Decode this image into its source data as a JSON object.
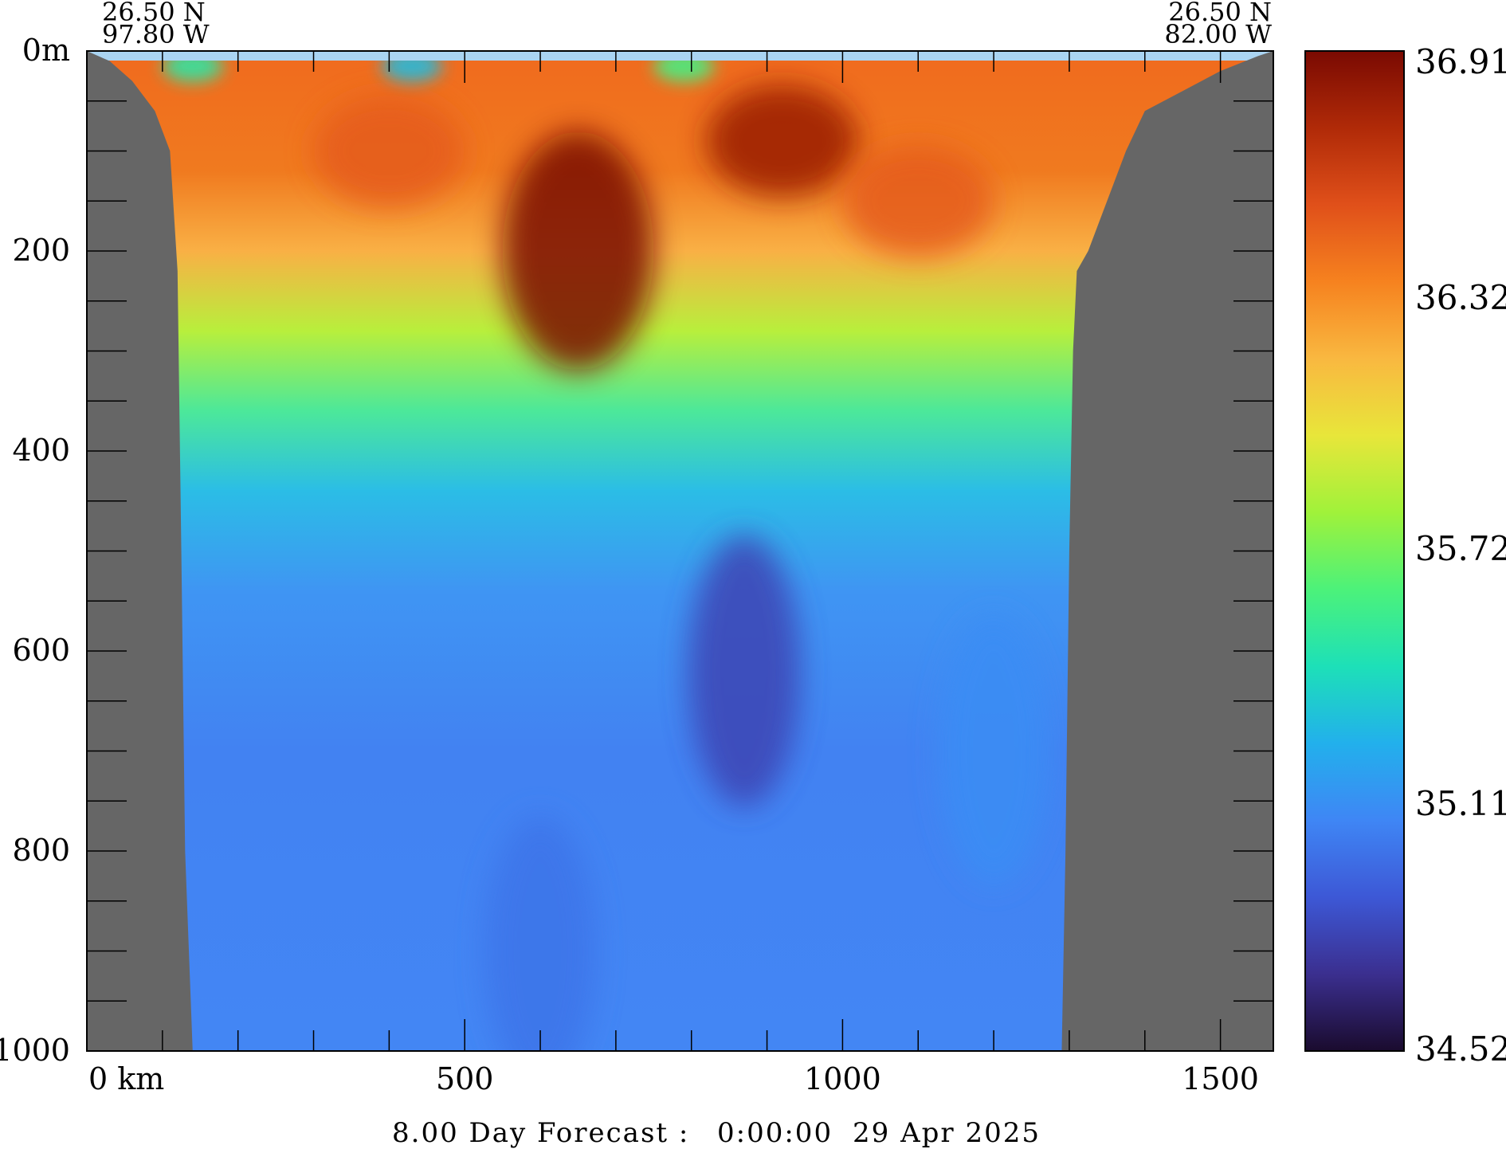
{
  "chart_data": {
    "type": "heatmap",
    "title": "",
    "left_lat": "26.50 N",
    "left_lon": "97.80 W",
    "right_lat": "26.50 N",
    "right_lon": "82.00 W",
    "ylabel": "",
    "xlabel": "",
    "xlim": [
      0,
      1570
    ],
    "ylim": [
      0,
      1000
    ],
    "x_ticks": [
      {
        "value": 0,
        "label": "0 km"
      },
      {
        "value": 500,
        "label": "500"
      },
      {
        "value": 1000,
        "label": "1000"
      },
      {
        "value": 1500,
        "label": "1500"
      }
    ],
    "y_ticks": [
      {
        "value": 0,
        "label": "0m"
      },
      {
        "value": 200,
        "label": "200"
      },
      {
        "value": 400,
        "label": "400"
      },
      {
        "value": 600,
        "label": "600"
      },
      {
        "value": 800,
        "label": "800"
      },
      {
        "value": 1000,
        "label": "1000"
      }
    ],
    "y_minor_step": 50,
    "x_minor_step": 100,
    "colorbar": {
      "min": 34.52,
      "max": 36.91,
      "labels": [
        "36.91",
        "36.32",
        "35.72",
        "35.11",
        "34.52"
      ],
      "label_values": [
        36.91,
        36.32,
        35.72,
        35.11,
        34.52
      ],
      "colormap": [
        "#1a0b2e",
        "#3b2f8f",
        "#3d58d6",
        "#3f86f5",
        "#22b0ec",
        "#1de0b8",
        "#4cf27a",
        "#a0f23a",
        "#e8e63a",
        "#f9b840",
        "#f6821f",
        "#e0501a",
        "#b02a08",
        "#7a0a02"
      ]
    },
    "bathymetry_left": [
      [
        0,
        0
      ],
      [
        30,
        10
      ],
      [
        60,
        30
      ],
      [
        90,
        60
      ],
      [
        110,
        100
      ],
      [
        120,
        220
      ],
      [
        125,
        500
      ],
      [
        130,
        800
      ],
      [
        140,
        1000
      ]
    ],
    "bathymetry_right": [
      [
        1290,
        1000
      ],
      [
        1295,
        800
      ],
      [
        1300,
        500
      ],
      [
        1305,
        300
      ],
      [
        1310,
        220
      ],
      [
        1325,
        200
      ],
      [
        1345,
        160
      ],
      [
        1375,
        100
      ],
      [
        1400,
        60
      ],
      [
        1450,
        40
      ],
      [
        1500,
        20
      ],
      [
        1550,
        5
      ],
      [
        1570,
        0
      ]
    ],
    "salinity_features": [
      {
        "x": 650,
        "depth": 200,
        "value": 36.91,
        "note": "core"
      },
      {
        "x": 920,
        "depth": 90,
        "value": 36.8
      },
      {
        "x": 400,
        "depth": 100,
        "value": 36.5
      },
      {
        "x": 1100,
        "depth": 150,
        "value": 36.5
      },
      {
        "x": 870,
        "depth": 620,
        "value": 34.8
      },
      {
        "x": 600,
        "depth": 900,
        "value": 35.0
      },
      {
        "x": 1200,
        "depth": 700,
        "value": 35.1
      }
    ],
    "surface_fresh_patches": [
      {
        "x": 430,
        "value": 35.3
      },
      {
        "x": 140,
        "value": 35.5
      },
      {
        "x": 790,
        "value": 35.6
      }
    ],
    "land_color": "#666666",
    "surface_band_color": "#aad4f2"
  },
  "footer": {
    "forecast_label": "8.00 Day Forecast :",
    "time": "0:00:00",
    "date": "29 Apr 2025"
  }
}
